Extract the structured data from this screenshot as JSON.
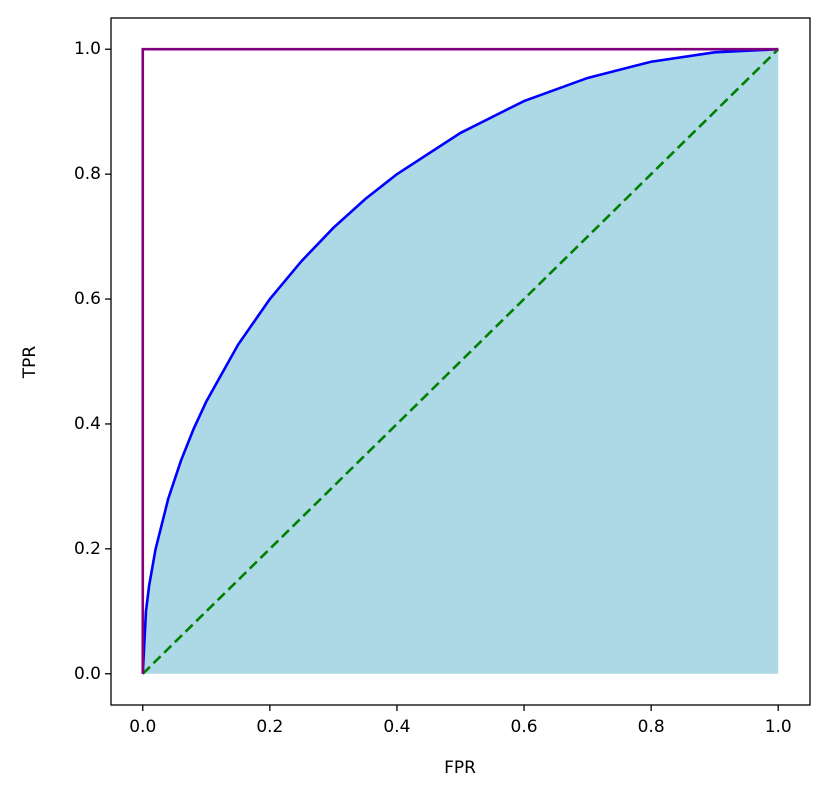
{
  "chart_data": {
    "type": "line",
    "x_label": "FPR",
    "y_label": "TPR",
    "xlim": [
      -0.05,
      1.05
    ],
    "ylim": [
      -0.05,
      1.05
    ],
    "xticks": [
      {
        "value": 0,
        "label": "0.0"
      },
      0.2,
      0.4,
      0.6,
      0.8,
      {
        "value": 1,
        "label": "1.0"
      }
    ],
    "yticks": [
      {
        "value": 0,
        "label": "0.0"
      },
      0.2,
      0.4,
      0.6,
      0.8,
      {
        "value": 1,
        "label": "1.0"
      }
    ],
    "grid": false,
    "series": [
      {
        "color": "#0000ff",
        "fill": "#add8e6",
        "dashed": false,
        "x": [
          0,
          0.005,
          0.01,
          0.02,
          0.04,
          0.06,
          0.08,
          0.1,
          0.15,
          0.2,
          0.25,
          0.3,
          0.35,
          0.4,
          0.5,
          0.6,
          0.7,
          0.8,
          0.9,
          1.0
        ],
        "values": [
          0,
          0.1,
          0.141,
          0.199,
          0.28,
          0.341,
          0.392,
          0.436,
          0.527,
          0.6,
          0.661,
          0.714,
          0.76,
          0.8,
          0.866,
          0.917,
          0.954,
          0.98,
          0.995,
          1.0
        ]
      },
      {
        "color": "#008000",
        "dashed": true,
        "x": [
          0,
          1
        ],
        "values": [
          0,
          1
        ]
      },
      {
        "color": "#800080",
        "dashed": false,
        "x": [
          0,
          0,
          1
        ],
        "values": [
          0,
          1,
          1
        ]
      }
    ]
  }
}
